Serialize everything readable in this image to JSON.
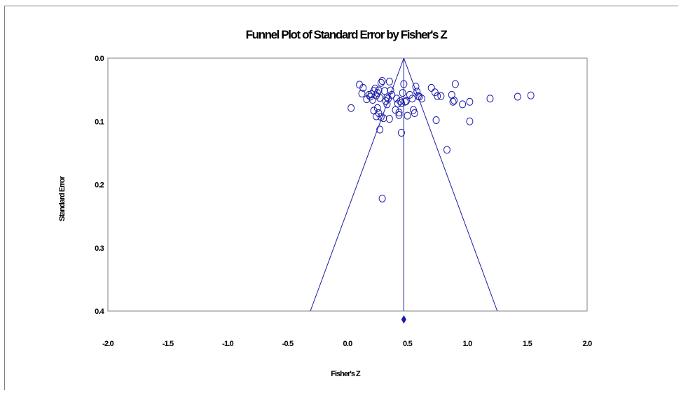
{
  "chart_data": {
    "type": "scatter",
    "title": "Funnel Plot of Standard Error by Fisher's Z",
    "xlabel": "Fisher's Z",
    "ylabel": "Standard Error",
    "xlim": [
      -2.0,
      2.0
    ],
    "ylim": [
      0.0,
      0.4
    ],
    "y_inverted": true,
    "x_ticks": [
      "-2.0",
      "-1.5",
      "-1.0",
      "-0.5",
      "0.0",
      "0.5",
      "1.0",
      "1.5",
      "2.0"
    ],
    "y_ticks": [
      "0.0",
      "0.1",
      "0.2",
      "0.3",
      "0.4"
    ],
    "combined_effect": 0.47,
    "funnel_lines": [
      {
        "from": [
          0.47,
          0.0
        ],
        "to": [
          -0.31,
          0.4
        ]
      },
      {
        "from": [
          0.47,
          0.0
        ],
        "to": [
          1.25,
          0.4
        ]
      },
      {
        "from": [
          0.47,
          0.0
        ],
        "to": [
          0.47,
          0.4
        ]
      }
    ],
    "line_color": "#1a1aa8",
    "marker_color": "#1a1aa8",
    "points": [
      [
        0.1,
        0.042
      ],
      [
        0.13,
        0.047
      ],
      [
        0.12,
        0.056
      ],
      [
        0.16,
        0.065
      ],
      [
        0.18,
        0.058
      ],
      [
        0.19,
        0.061
      ],
      [
        0.2,
        0.057
      ],
      [
        0.21,
        0.066
      ],
      [
        0.22,
        0.052
      ],
      [
        0.23,
        0.048
      ],
      [
        0.24,
        0.059
      ],
      [
        0.25,
        0.055
      ],
      [
        0.26,
        0.051
      ],
      [
        0.27,
        0.063
      ],
      [
        0.28,
        0.039
      ],
      [
        0.29,
        0.036
      ],
      [
        0.31,
        0.052
      ],
      [
        0.32,
        0.068
      ],
      [
        0.33,
        0.062
      ],
      [
        0.34,
        0.064
      ],
      [
        0.35,
        0.037
      ],
      [
        0.36,
        0.051
      ],
      [
        0.37,
        0.058
      ],
      [
        0.4,
        0.082
      ],
      [
        0.41,
        0.064
      ],
      [
        0.42,
        0.072
      ],
      [
        0.43,
        0.086
      ],
      [
        0.44,
        0.068
      ],
      [
        0.45,
        0.071
      ],
      [
        0.46,
        0.055
      ],
      [
        0.47,
        0.041
      ],
      [
        0.48,
        0.069
      ],
      [
        0.49,
        0.068
      ],
      [
        0.52,
        0.058
      ],
      [
        0.54,
        0.064
      ],
      [
        0.55,
        0.082
      ],
      [
        0.57,
        0.045
      ],
      [
        0.58,
        0.053
      ],
      [
        0.59,
        0.06
      ],
      [
        0.6,
        0.061
      ],
      [
        0.62,
        0.064
      ],
      [
        0.03,
        0.079
      ],
      [
        0.22,
        0.083
      ],
      [
        0.24,
        0.092
      ],
      [
        0.25,
        0.079
      ],
      [
        0.26,
        0.087
      ],
      [
        0.28,
        0.093
      ],
      [
        0.3,
        0.095
      ],
      [
        0.33,
        0.073
      ],
      [
        0.35,
        0.096
      ],
      [
        0.43,
        0.09
      ],
      [
        0.5,
        0.091
      ],
      [
        0.56,
        0.087
      ],
      [
        0.27,
        0.113
      ],
      [
        0.45,
        0.118
      ],
      [
        0.7,
        0.047
      ],
      [
        0.73,
        0.054
      ],
      [
        0.75,
        0.06
      ],
      [
        0.78,
        0.06
      ],
      [
        0.87,
        0.058
      ],
      [
        0.89,
        0.067
      ],
      [
        0.9,
        0.041
      ],
      [
        0.88,
        0.069
      ],
      [
        0.96,
        0.073
      ],
      [
        1.02,
        0.069
      ],
      [
        0.74,
        0.098
      ],
      [
        1.02,
        0.1
      ],
      [
        0.83,
        0.145
      ],
      [
        1.19,
        0.064
      ],
      [
        1.42,
        0.061
      ],
      [
        1.53,
        0.059
      ],
      [
        0.29,
        0.222
      ]
    ]
  }
}
